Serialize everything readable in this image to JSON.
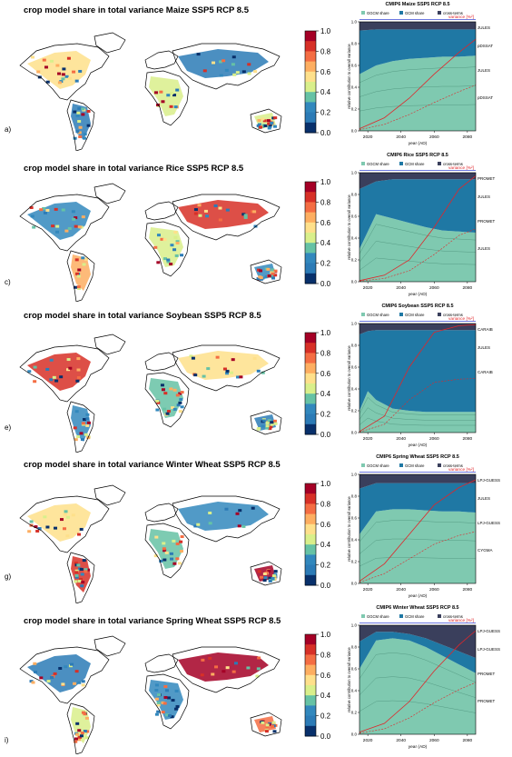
{
  "colorbar": {
    "ticks": [
      "1.0",
      "0.8",
      "0.6",
      "0.4",
      "0.2",
      "0.0"
    ],
    "colors": [
      "#a50026",
      "#d73027",
      "#f46d43",
      "#fdae61",
      "#fee08b",
      "#d9ef8b",
      "#66c2a5",
      "#3288bd",
      "#2c7bb6",
      "#08306b"
    ]
  },
  "series_colors": {
    "ggcm": "#7fc9b0",
    "gcm": "#1f78a4",
    "cross": "#3a3f5c",
    "variance": "#e0262a"
  },
  "chart_data": [
    {
      "type": "map",
      "title": "crop model share in total variance Maize SSP5 RCP 8.5",
      "panel": "a)",
      "colorbar_range": [
        0,
        1
      ]
    },
    {
      "type": "area",
      "title": "CMIP6 Maize SSP5 RCP 8.5",
      "legend": [
        "GGCM share",
        "GCM share",
        "cross-terms"
      ],
      "legend_position": "top",
      "ylabel": "relative contribution to overall variance",
      "xlabel": "year (AD)",
      "variance_label": "variance [%²]",
      "yticks": [
        "0.0",
        "0.2",
        "0.4",
        "0.6",
        "0.8",
        "1.0"
      ],
      "xticks": [
        "2020",
        "2040",
        "2060",
        "2080"
      ],
      "xlim": [
        2015,
        2085
      ],
      "ylim": [
        0,
        1
      ],
      "series": [
        {
          "name": "GGCM share",
          "x": [
            2015,
            2025,
            2035,
            2045,
            2055,
            2065,
            2075,
            2085
          ],
          "values": [
            0.52,
            0.6,
            0.64,
            0.66,
            0.67,
            0.68,
            0.68,
            0.69
          ]
        },
        {
          "name": "GCM share",
          "x": [
            2015,
            2025,
            2035,
            2045,
            2055,
            2065,
            2075,
            2085
          ],
          "values": [
            0.4,
            0.33,
            0.29,
            0.27,
            0.26,
            0.25,
            0.25,
            0.24
          ]
        },
        {
          "name": "cross-terms",
          "x": [
            2015,
            2025,
            2035,
            2045,
            2055,
            2065,
            2075,
            2085
          ],
          "values": [
            0.08,
            0.07,
            0.07,
            0.07,
            0.07,
            0.07,
            0.07,
            0.07
          ]
        }
      ],
      "variance_curve": {
        "x": [
          2015,
          2030,
          2045,
          2060,
          2075,
          2085
        ],
        "values": [
          0.02,
          0.12,
          0.3,
          0.52,
          0.72,
          0.84
        ]
      },
      "annotations": [
        "JULES",
        "pDSSAT",
        "JULES",
        "pDSSAT"
      ]
    },
    {
      "type": "map",
      "title": "crop model share in total variance Rice SSP5 RCP 8.5",
      "panel": "c)",
      "colorbar_range": [
        0,
        1
      ]
    },
    {
      "type": "area",
      "title": "CMIP6 Rice SSP5 RCP 8.5",
      "legend": [
        "GGCM share",
        "GCM share",
        "cross-terms"
      ],
      "legend_position": "top",
      "ylabel": "relative contribution to overall variance",
      "xlabel": "year (AD)",
      "variance_label": "variance [%²]",
      "yticks": [
        "0.0",
        "0.2",
        "0.4",
        "0.6",
        "0.8",
        "1.0"
      ],
      "xticks": [
        "2020",
        "2040",
        "2060",
        "2080"
      ],
      "xlim": [
        2015,
        2085
      ],
      "ylim": [
        0,
        1
      ],
      "series": [
        {
          "name": "GGCM share",
          "x": [
            2015,
            2025,
            2035,
            2045,
            2055,
            2065,
            2075,
            2085
          ],
          "values": [
            0.3,
            0.62,
            0.58,
            0.54,
            0.5,
            0.47,
            0.46,
            0.45
          ]
        },
        {
          "name": "GCM share",
          "x": [
            2015,
            2025,
            2035,
            2045,
            2055,
            2065,
            2075,
            2085
          ],
          "values": [
            0.55,
            0.3,
            0.36,
            0.4,
            0.44,
            0.47,
            0.48,
            0.49
          ]
        },
        {
          "name": "cross-terms",
          "x": [
            2015,
            2025,
            2035,
            2045,
            2055,
            2065,
            2075,
            2085
          ],
          "values": [
            0.15,
            0.08,
            0.06,
            0.06,
            0.06,
            0.06,
            0.06,
            0.06
          ]
        }
      ],
      "variance_curve": {
        "x": [
          2015,
          2030,
          2045,
          2060,
          2075,
          2085
        ],
        "values": [
          0.01,
          0.06,
          0.2,
          0.5,
          0.85,
          0.97
        ]
      },
      "annotations": [
        "PROMET",
        "JULES",
        "PROMET",
        "JULES"
      ]
    },
    {
      "type": "map",
      "title": "crop model share in total variance Soybean SSP5 RCP 8.5",
      "panel": "e)",
      "colorbar_range": [
        0,
        1
      ]
    },
    {
      "type": "area",
      "title": "CMIP6 Soybean SSP5 RCP 8.5",
      "legend": [
        "GGCM share",
        "GCM share",
        "cross-terms"
      ],
      "legend_position": "top",
      "ylabel": "relative contribution to overall variance",
      "xlabel": "year (AD)",
      "variance_label": "variance [%²]",
      "yticks": [
        "0.0",
        "0.2",
        "0.4",
        "0.6",
        "0.8",
        "1.0"
      ],
      "xticks": [
        "2020",
        "2040",
        "2060",
        "2080"
      ],
      "xlim": [
        2015,
        2085
      ],
      "ylim": [
        0,
        1
      ],
      "series": [
        {
          "name": "GGCM share",
          "x": [
            2015,
            2020,
            2025,
            2035,
            2045,
            2055,
            2065,
            2075,
            2085
          ],
          "values": [
            0.2,
            0.38,
            0.3,
            0.22,
            0.2,
            0.19,
            0.19,
            0.19,
            0.19
          ]
        },
        {
          "name": "GCM share",
          "x": [
            2015,
            2020,
            2025,
            2035,
            2045,
            2055,
            2065,
            2075,
            2085
          ],
          "values": [
            0.7,
            0.55,
            0.64,
            0.72,
            0.74,
            0.75,
            0.75,
            0.75,
            0.75
          ]
        },
        {
          "name": "cross-terms",
          "x": [
            2015,
            2020,
            2025,
            2035,
            2045,
            2055,
            2065,
            2075,
            2085
          ],
          "values": [
            0.1,
            0.07,
            0.06,
            0.06,
            0.06,
            0.06,
            0.06,
            0.06,
            0.06
          ]
        }
      ],
      "variance_curve": {
        "x": [
          2015,
          2030,
          2045,
          2060,
          2075,
          2085
        ],
        "values": [
          0.01,
          0.15,
          0.6,
          0.92,
          0.98,
          0.99
        ]
      },
      "annotations": [
        "CARAIB",
        "JULES",
        "CARAIB"
      ]
    },
    {
      "type": "map",
      "title": "crop model share in total variance Winter Wheat SSP5 RCP 8.5",
      "panel": "g)",
      "colorbar_range": [
        0,
        1
      ]
    },
    {
      "type": "area",
      "title": "CMIP6 Spring Wheat SSP5 RCP 8.5",
      "legend": [
        "GGCM share",
        "GCM share",
        "cross-terms"
      ],
      "legend_position": "top",
      "ylabel": "relative contribution to overall variance",
      "xlabel": "year (AD)",
      "variance_label": "variance [%²]",
      "yticks": [
        "0.0",
        "0.2",
        "0.4",
        "0.6",
        "0.8",
        "1.0"
      ],
      "xticks": [
        "2020",
        "2040",
        "2060",
        "2080"
      ],
      "xlim": [
        2015,
        2085
      ],
      "ylim": [
        0,
        1
      ],
      "series": [
        {
          "name": "GGCM share",
          "x": [
            2015,
            2025,
            2035,
            2045,
            2055,
            2065,
            2075,
            2085
          ],
          "values": [
            0.45,
            0.66,
            0.68,
            0.68,
            0.67,
            0.66,
            0.66,
            0.65
          ]
        },
        {
          "name": "GCM share",
          "x": [
            2015,
            2025,
            2035,
            2045,
            2055,
            2065,
            2075,
            2085
          ],
          "values": [
            0.42,
            0.26,
            0.24,
            0.24,
            0.25,
            0.26,
            0.26,
            0.27
          ]
        },
        {
          "name": "cross-terms",
          "x": [
            2015,
            2025,
            2035,
            2045,
            2055,
            2065,
            2075,
            2085
          ],
          "values": [
            0.13,
            0.08,
            0.08,
            0.08,
            0.08,
            0.08,
            0.08,
            0.08
          ]
        }
      ],
      "variance_curve": {
        "x": [
          2015,
          2030,
          2045,
          2060,
          2075,
          2085
        ],
        "values": [
          0.02,
          0.18,
          0.45,
          0.72,
          0.88,
          0.95
        ]
      },
      "annotations": [
        "LPJ-GUESS",
        "JULES",
        "LPJ-GUESS",
        "CYGMA"
      ]
    },
    {
      "type": "map",
      "title": "crop model share in total variance Spring Wheat SSP5 RCP 8.5",
      "panel": "i)",
      "colorbar_range": [
        0,
        1
      ]
    },
    {
      "type": "area",
      "title": "CMIP6 Winter Wheat SSP5 RCP 8.5",
      "legend": [
        "GGCM share",
        "GCM share",
        "cross-terms"
      ],
      "legend_position": "top",
      "ylabel": "relative contribution to overall variance",
      "xlabel": "year (AD)",
      "variance_label": "variance [%²]",
      "yticks": [
        "0.0",
        "0.2",
        "0.4",
        "0.6",
        "0.8",
        "1.0"
      ],
      "xticks": [
        "2020",
        "2040",
        "2060",
        "2080"
      ],
      "xlim": [
        2015,
        2085
      ],
      "ylim": [
        0,
        1
      ],
      "series": [
        {
          "name": "GGCM share",
          "x": [
            2015,
            2025,
            2035,
            2045,
            2055,
            2065,
            2075,
            2085
          ],
          "values": [
            0.6,
            0.86,
            0.88,
            0.86,
            0.8,
            0.72,
            0.64,
            0.56
          ]
        },
        {
          "name": "GCM share",
          "x": [
            2015,
            2025,
            2035,
            2045,
            2055,
            2065,
            2075,
            2085
          ],
          "values": [
            0.25,
            0.08,
            0.06,
            0.06,
            0.08,
            0.1,
            0.12,
            0.14
          ]
        },
        {
          "name": "cross-terms",
          "x": [
            2015,
            2025,
            2035,
            2045,
            2055,
            2065,
            2075,
            2085
          ],
          "values": [
            0.15,
            0.06,
            0.06,
            0.08,
            0.12,
            0.18,
            0.24,
            0.3
          ]
        }
      ],
      "variance_curve": {
        "x": [
          2015,
          2030,
          2045,
          2060,
          2075,
          2085
        ],
        "values": [
          0.02,
          0.1,
          0.3,
          0.58,
          0.82,
          0.95
        ]
      },
      "annotations": [
        "LPJ-GUESS",
        "LPJ-GUESS",
        "PROMET",
        "PROMET"
      ]
    }
  ]
}
